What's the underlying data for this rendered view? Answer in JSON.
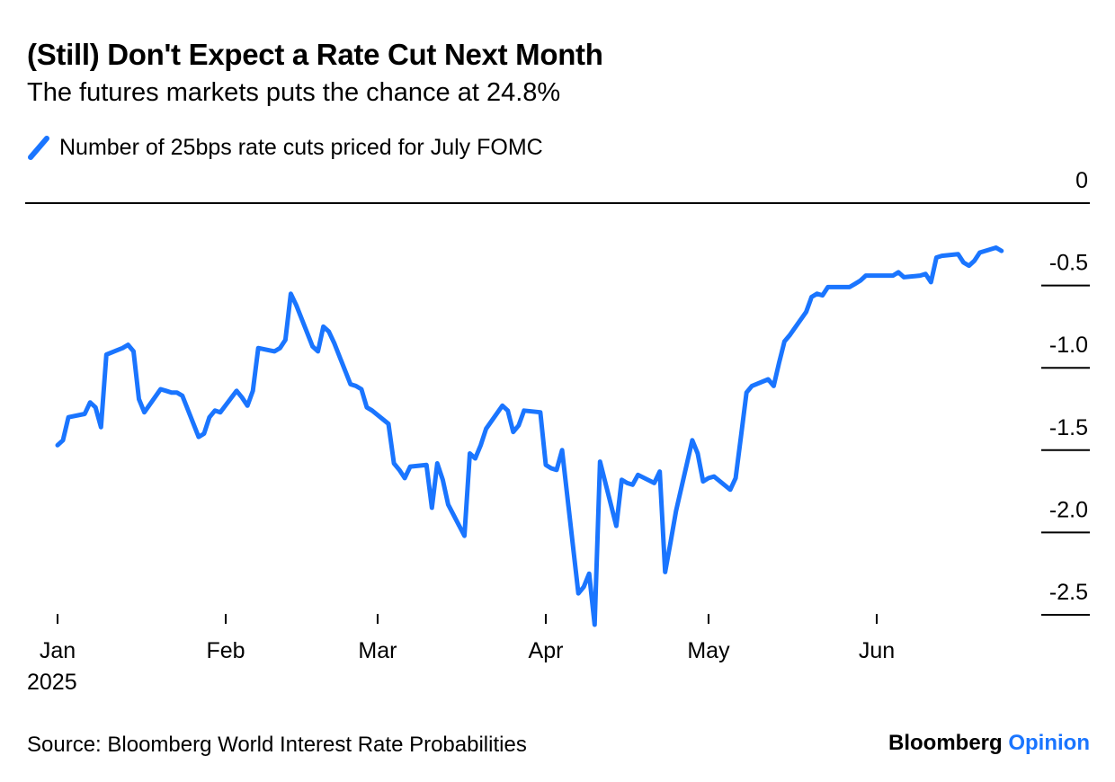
{
  "header": {
    "title": "(Still) Don't Expect a Rate Cut Next Month",
    "subtitle": "The futures markets puts the chance at 24.8%"
  },
  "footer": {
    "source": "Source: Bloomberg World Interest Rate Probabilities",
    "brand_name": "Bloomberg",
    "brand_section": "Opinion"
  },
  "colors": {
    "line": "#1a75ff",
    "brand_accent": "#1a75ff",
    "axis": "#000000"
  },
  "chart_data": {
    "type": "line",
    "title": "(Still) Don't Expect a Rate Cut Next Month",
    "subtitle": "The futures markets puts the chance at 24.8%",
    "xlabel": "",
    "ylabel": "",
    "legend_position": "top-left",
    "grid": false,
    "ylim": [
      -2.5,
      0
    ],
    "y_ticks": [
      0,
      -0.5,
      -1.0,
      -1.5,
      -2.0,
      -2.5
    ],
    "y_tick_labels": [
      "0",
      "-0.5",
      "-1.0",
      "-1.5",
      "-2.0",
      "-2.5"
    ],
    "x_ticks": [
      "2025-01-01",
      "2025-02-01",
      "2025-03-01",
      "2025-04-01",
      "2025-05-01",
      "2025-06-01"
    ],
    "x_tick_labels": [
      "Jan",
      "Feb",
      "Mar",
      "Apr",
      "May",
      "Jun"
    ],
    "x_year_label": "2025",
    "series": [
      {
        "name": "Number of 25bps rate cuts priced for July FOMC",
        "x": [
          "2025-01-01",
          "2025-01-02",
          "2025-01-03",
          "2025-01-06",
          "2025-01-07",
          "2025-01-08",
          "2025-01-09",
          "2025-01-10",
          "2025-01-13",
          "2025-01-14",
          "2025-01-15",
          "2025-01-16",
          "2025-01-17",
          "2025-01-20",
          "2025-01-21",
          "2025-01-22",
          "2025-01-23",
          "2025-01-24",
          "2025-01-27",
          "2025-01-28",
          "2025-01-29",
          "2025-01-30",
          "2025-01-31",
          "2025-02-03",
          "2025-02-04",
          "2025-02-05",
          "2025-02-06",
          "2025-02-07",
          "2025-02-10",
          "2025-02-11",
          "2025-02-12",
          "2025-02-13",
          "2025-02-14",
          "2025-02-17",
          "2025-02-18",
          "2025-02-19",
          "2025-02-20",
          "2025-02-21",
          "2025-02-24",
          "2025-02-25",
          "2025-02-26",
          "2025-02-27",
          "2025-02-28",
          "2025-03-03",
          "2025-03-04",
          "2025-03-05",
          "2025-03-06",
          "2025-03-07",
          "2025-03-10",
          "2025-03-11",
          "2025-03-12",
          "2025-03-13",
          "2025-03-14",
          "2025-03-17",
          "2025-03-18",
          "2025-03-19",
          "2025-03-20",
          "2025-03-21",
          "2025-03-24",
          "2025-03-25",
          "2025-03-26",
          "2025-03-27",
          "2025-03-28",
          "2025-03-31",
          "2025-04-01",
          "2025-04-02",
          "2025-04-03",
          "2025-04-04",
          "2025-04-07",
          "2025-04-08",
          "2025-04-09",
          "2025-04-10",
          "2025-04-11",
          "2025-04-14",
          "2025-04-15",
          "2025-04-16",
          "2025-04-17",
          "2025-04-18",
          "2025-04-21",
          "2025-04-22",
          "2025-04-23",
          "2025-04-24",
          "2025-04-25",
          "2025-04-28",
          "2025-04-29",
          "2025-04-30",
          "2025-05-01",
          "2025-05-02",
          "2025-05-05",
          "2025-05-06",
          "2025-05-07",
          "2025-05-08",
          "2025-05-09",
          "2025-05-12",
          "2025-05-13",
          "2025-05-14",
          "2025-05-15",
          "2025-05-16",
          "2025-05-19",
          "2025-05-20",
          "2025-05-21",
          "2025-05-22",
          "2025-05-23",
          "2025-05-26",
          "2025-05-27",
          "2025-05-28",
          "2025-05-29",
          "2025-05-30",
          "2025-06-02",
          "2025-06-03",
          "2025-06-04",
          "2025-06-05",
          "2025-06-06",
          "2025-06-09",
          "2025-06-10",
          "2025-06-11",
          "2025-06-12",
          "2025-06-13",
          "2025-06-16",
          "2025-06-17",
          "2025-06-18",
          "2025-06-19",
          "2025-06-20",
          "2025-06-23",
          "2025-06-24"
        ],
        "values": [
          -1.47,
          -1.44,
          -1.3,
          -1.28,
          -1.21,
          -1.24,
          -1.36,
          -0.92,
          -0.88,
          -0.86,
          -0.9,
          -1.19,
          -1.27,
          -1.13,
          -1.14,
          -1.15,
          -1.15,
          -1.17,
          -1.42,
          -1.4,
          -1.3,
          -1.26,
          -1.27,
          -1.14,
          -1.18,
          -1.23,
          -1.14,
          -0.88,
          -0.9,
          -0.88,
          -0.83,
          -0.55,
          -0.62,
          -0.87,
          -0.9,
          -0.75,
          -0.78,
          -0.85,
          -1.1,
          -1.11,
          -1.13,
          -1.24,
          -1.26,
          -1.34,
          -1.58,
          -1.62,
          -1.67,
          -1.6,
          -1.59,
          -1.85,
          -1.58,
          -1.68,
          -1.83,
          -2.02,
          -1.52,
          -1.55,
          -1.47,
          -1.37,
          -1.23,
          -1.26,
          -1.39,
          -1.35,
          -1.26,
          -1.27,
          -1.59,
          -1.61,
          -1.62,
          -1.5,
          -2.37,
          -2.33,
          -2.25,
          -2.56,
          -1.57,
          -1.96,
          -1.68,
          -1.7,
          -1.71,
          -1.65,
          -1.7,
          -1.63,
          -2.24,
          -2.06,
          -1.87,
          -1.44,
          -1.52,
          -1.69,
          -1.67,
          -1.66,
          -1.74,
          -1.67,
          -1.41,
          -1.15,
          -1.11,
          -1.07,
          -1.11,
          -0.97,
          -0.84,
          -0.8,
          -0.66,
          -0.57,
          -0.55,
          -0.56,
          -0.51,
          -0.51,
          -0.51,
          -0.49,
          -0.47,
          -0.44,
          -0.44,
          -0.44,
          -0.44,
          -0.42,
          -0.45,
          -0.44,
          -0.43,
          -0.48,
          -0.33,
          -0.32,
          -0.31,
          -0.36,
          -0.38,
          -0.35,
          -0.3,
          -0.27,
          -0.29
        ]
      }
    ]
  }
}
